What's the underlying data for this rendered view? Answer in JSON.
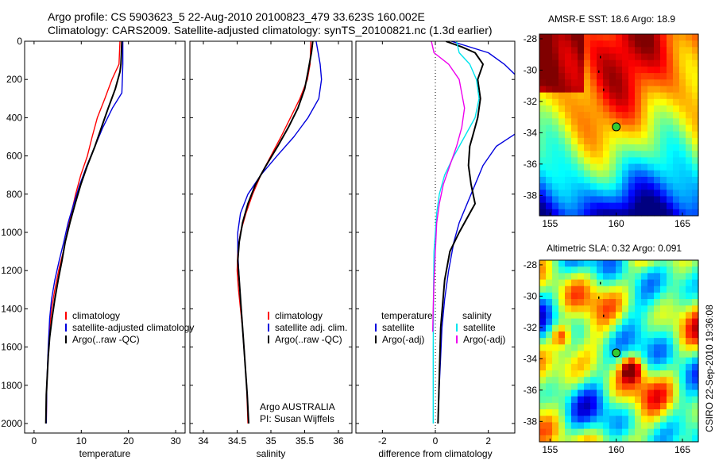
{
  "titles": {
    "line1": "Argo profile: CS 5903623_5 22-Aug-2010 20100823_479 33.623S 160.002E",
    "line2": "Climatology: CARS2009. Satellite-adjusted climatology: synTS_20100821.nc (1.3d earlier)"
  },
  "map_titles": {
    "sst": "AMSR-E SST: 18.6 Argo: 18.9",
    "sla": "Altimetric SLA: 0.32 Argo: 0.091"
  },
  "credit": "CSIRO 22-Sep-2010 19:36:08",
  "attribution": {
    "line1": "Argo AUSTRALIA",
    "line2": "PI: Susan Wijffels"
  },
  "colors": {
    "climatology": "#ff0000",
    "satellite": "#0000dd",
    "argo": "#000000",
    "satellite_salinity": "#00e5ee",
    "argo_adj_salinity": "#ee00ee",
    "marker_fill": "#33cc33"
  },
  "chart_data": [
    {
      "type": "line",
      "id": "temperature",
      "xlabel": "temperature",
      "xlim": [
        -2,
        32
      ],
      "ylim": [
        0,
        2050
      ],
      "y_reversed": true,
      "xticks": [
        0,
        10,
        20,
        30
      ],
      "yticks": [
        0,
        200,
        400,
        600,
        800,
        1000,
        1200,
        1400,
        1600,
        1800,
        2000
      ],
      "legend": [
        "climatology",
        "satellite-adjusted climatology",
        "Argo(..raw -QC)"
      ],
      "series": [
        {
          "name": "climatology",
          "color": "red",
          "x": [
            18.2,
            18.0,
            16.5,
            15.0,
            13.4,
            12.3,
            11.3,
            9.9,
            8.8,
            7.9,
            7.0,
            6.2,
            5.2,
            4.4,
            3.7,
            3.3,
            3.0,
            2.7,
            2.6
          ],
          "y": [
            0,
            120,
            200,
            300,
            400,
            500,
            600,
            700,
            800,
            900,
            1000,
            1100,
            1200,
            1300,
            1400,
            1500,
            1650,
            1800,
            2000
          ]
        },
        {
          "name": "satellite-adjusted climatology",
          "color": "blue",
          "x": [
            18.8,
            18.8,
            18.7,
            18.6,
            16.6,
            14.6,
            12.9,
            11.2,
            9.7,
            8.4,
            7.2,
            6.3,
            5.3,
            4.4,
            3.7,
            3.3,
            3.0,
            2.7,
            2.6
          ],
          "y": [
            0,
            120,
            200,
            270,
            350,
            450,
            550,
            650,
            750,
            850,
            950,
            1050,
            1150,
            1250,
            1350,
            1450,
            1600,
            1800,
            2000
          ]
        },
        {
          "name": "Argo(..raw -QC)",
          "color": "black",
          "x": [
            18.6,
            18.5,
            18.4,
            18.2,
            17.2,
            15.7,
            14.3,
            12.9,
            11.3,
            9.9,
            8.7,
            7.6,
            6.6,
            5.9,
            5.1,
            4.4,
            3.8,
            3.3,
            3.0,
            2.6,
            2.5
          ],
          "y": [
            0,
            60,
            120,
            160,
            250,
            350,
            450,
            550,
            650,
            750,
            850,
            950,
            1050,
            1150,
            1250,
            1350,
            1450,
            1550,
            1650,
            1850,
            2000
          ]
        }
      ]
    },
    {
      "type": "line",
      "id": "salinity",
      "xlabel": "salinity",
      "xlim": [
        33.8,
        36.2
      ],
      "ylim": [
        0,
        2050
      ],
      "y_reversed": true,
      "xticks": [
        34,
        34.5,
        35,
        35.5,
        36
      ],
      "xticklabels": [
        "34",
        "34.5",
        "35",
        "35.5",
        "36"
      ],
      "legend": [
        "climatology",
        "satellite adj. clim.",
        "Argo(..raw -QC)"
      ],
      "series": [
        {
          "name": "climatology",
          "color": "red",
          "x": [
            35.59,
            35.58,
            35.54,
            35.43,
            35.29,
            35.15,
            35.0,
            34.85,
            34.73,
            34.63,
            34.55,
            34.51,
            34.5,
            34.52,
            34.55,
            34.58,
            34.61,
            34.64,
            34.66
          ],
          "y": [
            0,
            120,
            200,
            300,
            400,
            500,
            600,
            700,
            800,
            900,
            1000,
            1100,
            1200,
            1300,
            1400,
            1500,
            1650,
            1800,
            2000
          ]
        },
        {
          "name": "satellite adj. clim.",
          "color": "blue",
          "x": [
            35.67,
            35.7,
            35.73,
            35.75,
            35.71,
            35.55,
            35.34,
            35.09,
            34.85,
            34.66,
            34.55,
            34.51,
            34.51,
            34.53,
            34.56,
            34.59,
            34.62,
            34.65,
            34.67
          ],
          "y": [
            0,
            60,
            120,
            200,
            300,
            400,
            500,
            600,
            700,
            800,
            900,
            1000,
            1100,
            1250,
            1400,
            1550,
            1700,
            1850,
            2000
          ]
        },
        {
          "name": "Argo(..raw -QC)",
          "color": "black",
          "x": [
            35.62,
            35.6,
            35.57,
            35.55,
            35.5,
            35.4,
            35.26,
            35.1,
            34.93,
            34.77,
            34.66,
            34.58,
            34.53,
            34.51,
            34.53,
            34.56,
            34.59,
            34.62,
            34.65,
            34.67
          ],
          "y": [
            0,
            60,
            120,
            160,
            250,
            350,
            450,
            550,
            650,
            750,
            850,
            950,
            1050,
            1150,
            1250,
            1400,
            1550,
            1700,
            1850,
            2000
          ]
        }
      ]
    },
    {
      "type": "line",
      "id": "difference",
      "xlabel": "difference from climatology",
      "xlim": [
        -3,
        3
      ],
      "ylim": [
        0,
        2050
      ],
      "y_reversed": true,
      "xticks": [
        -2,
        0,
        2
      ],
      "legend_groups": [
        {
          "heading": "temperature",
          "entries": [
            "satellite",
            "Argo(-adj)"
          ]
        },
        {
          "heading": "salinity",
          "entries": [
            "satellite",
            "Argo(-adj)"
          ]
        }
      ],
      "series": [
        {
          "name": "satellite",
          "variable": "temperature",
          "color": "blue",
          "x": [
            0.6,
            2.0,
            2.6,
            3.2,
            3.4,
            2.3,
            1.8,
            1.5,
            1.2,
            0.9,
            0.7,
            0.5,
            0.35,
            0.25,
            0.2,
            0.15,
            0.1
          ],
          "y": [
            0,
            60,
            120,
            200,
            450,
            550,
            650,
            750,
            850,
            950,
            1050,
            1200,
            1350,
            1500,
            1650,
            1800,
            2000
          ]
        },
        {
          "name": "Argo(-adj)",
          "variable": "temperature",
          "color": "black",
          "x": [
            0.4,
            1.0,
            1.5,
            1.8,
            1.6,
            1.7,
            1.6,
            1.4,
            1.3,
            1.25,
            1.35,
            1.5,
            1.3,
            0.9,
            0.55,
            0.35,
            0.2,
            0.15,
            0.1
          ],
          "y": [
            0,
            30,
            60,
            120,
            200,
            300,
            400,
            500,
            550,
            650,
            750,
            850,
            900,
            1000,
            1100,
            1250,
            1500,
            1750,
            2000
          ]
        },
        {
          "name": "satellite",
          "variable": "salinity",
          "color": "cyan",
          "x": [
            0.8,
            0.9,
            1.3,
            1.55,
            1.65,
            1.5,
            1.1,
            0.7,
            0.35,
            0.15,
            0.05,
            0.0,
            -0.05,
            -0.07,
            -0.08,
            -0.08
          ],
          "y": [
            0,
            60,
            120,
            200,
            300,
            400,
            500,
            600,
            700,
            800,
            900,
            1000,
            1100,
            1300,
            1600,
            2000
          ]
        },
        {
          "name": "Argo(-adj)",
          "variable": "salinity",
          "color": "magenta",
          "x": [
            -0.15,
            -0.05,
            0.5,
            0.9,
            1.1,
            1.0,
            0.8,
            0.55,
            0.3,
            0.15,
            0.05,
            0.0,
            -0.05,
            -0.08,
            -0.1
          ],
          "y": [
            0,
            60,
            120,
            200,
            350,
            450,
            550,
            650,
            750,
            850,
            950,
            1100,
            1250,
            1400,
            1520
          ]
        }
      ]
    },
    {
      "type": "heatmap",
      "id": "sst_map",
      "title": "AMSR-E SST: 18.6 Argo: 18.9",
      "xlim": [
        154.2,
        166.2
      ],
      "ylim": [
        -39.3,
        -27.7
      ],
      "xticks": [
        155,
        160,
        165
      ],
      "yticks": [
        -28,
        -30,
        -32,
        -34,
        -36,
        -38
      ],
      "marker": {
        "lon": 160.002,
        "lat": -33.623
      }
    },
    {
      "type": "heatmap",
      "id": "sla_map",
      "title": "Altimetric SLA: 0.32 Argo: 0.091",
      "xlim": [
        154.2,
        166.2
      ],
      "ylim": [
        -39.3,
        -27.7
      ],
      "xticks": [
        155,
        160,
        165
      ],
      "yticks": [
        -28,
        -30,
        -32,
        -34,
        -36,
        -38
      ],
      "marker": {
        "lon": 160.002,
        "lat": -33.623
      }
    }
  ]
}
